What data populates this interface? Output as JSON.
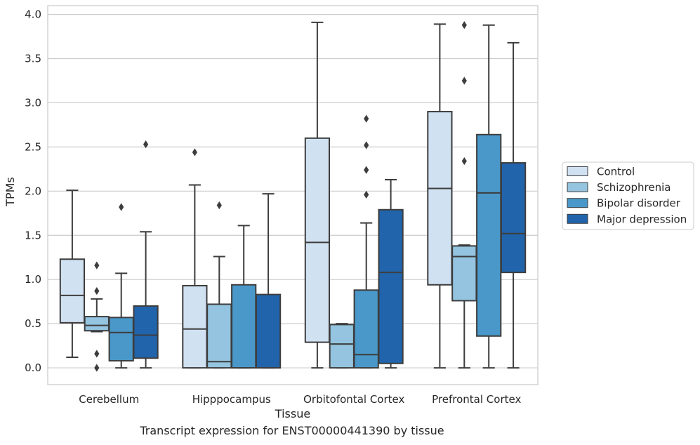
{
  "chart_data": {
    "type": "boxplot",
    "xlabel": "Tissue",
    "ylabel": "TPMs",
    "caption": "Transcript expression for ENST00000441390 by tissue",
    "ylim": [
      -0.19,
      4.1
    ],
    "yticks": [
      "0.0",
      "0.5",
      "1.0",
      "1.5",
      "2.0",
      "2.5",
      "3.0",
      "3.5",
      "4.0"
    ],
    "grid": "horizontal",
    "legend_position": "right",
    "categories": [
      "Cerebellum",
      "Hipppocampus",
      "Orbitofontal Cortex",
      "Prefrontal Cortex"
    ],
    "series": [
      {
        "name": "Control",
        "color": "#d0e1f2",
        "boxes": [
          {
            "min": 0.12,
            "q1": 0.51,
            "median": 0.82,
            "q3": 1.23,
            "max": 2.01,
            "outliers": []
          },
          {
            "min": 0.0,
            "q1": 0.0,
            "median": 0.44,
            "q3": 0.93,
            "max": 2.07,
            "outliers": [
              2.44
            ]
          },
          {
            "min": 0.0,
            "q1": 0.29,
            "median": 1.42,
            "q3": 2.6,
            "max": 3.91,
            "outliers": []
          },
          {
            "min": 0.0,
            "q1": 0.94,
            "median": 2.03,
            "q3": 2.9,
            "max": 3.89,
            "outliers": []
          }
        ]
      },
      {
        "name": "Schizophrenia",
        "color": "#94c4df",
        "boxes": [
          {
            "min": 0.41,
            "q1": 0.42,
            "median": 0.48,
            "q3": 0.58,
            "max": 0.78,
            "outliers": [
              0.0,
              0.16,
              0.87,
              1.16
            ]
          },
          {
            "min": 0.0,
            "q1": 0.0,
            "median": 0.07,
            "q3": 0.72,
            "max": 1.26,
            "outliers": [
              1.84
            ]
          },
          {
            "min": 0.0,
            "q1": 0.0,
            "median": 0.27,
            "q3": 0.49,
            "max": 0.5,
            "outliers": []
          },
          {
            "min": 0.0,
            "q1": 0.76,
            "median": 1.26,
            "q3": 1.38,
            "max": 1.39,
            "outliers": [
              2.34,
              3.25,
              3.88
            ]
          }
        ]
      },
      {
        "name": "Bipolar disorder",
        "color": "#4a98c9",
        "boxes": [
          {
            "min": 0.0,
            "q1": 0.08,
            "median": 0.4,
            "q3": 0.57,
            "max": 1.07,
            "outliers": [
              1.82
            ]
          },
          {
            "min": 0.0,
            "q1": 0.0,
            "median": 0.0,
            "q3": 0.94,
            "max": 1.61,
            "outliers": []
          },
          {
            "min": 0.0,
            "q1": 0.0,
            "median": 0.15,
            "q3": 0.88,
            "max": 1.64,
            "outliers": [
              1.96,
              2.24,
              2.52,
              2.82
            ]
          },
          {
            "min": 0.0,
            "q1": 0.36,
            "median": 1.98,
            "q3": 2.64,
            "max": 3.88,
            "outliers": []
          }
        ]
      },
      {
        "name": "Major depression",
        "color": "#2164ab",
        "boxes": [
          {
            "min": 0.0,
            "q1": 0.11,
            "median": 0.37,
            "q3": 0.7,
            "max": 1.54,
            "outliers": [
              2.53
            ]
          },
          {
            "min": 0.0,
            "q1": 0.0,
            "median": 0.0,
            "q3": 0.83,
            "max": 1.97,
            "outliers": []
          },
          {
            "min": 0.0,
            "q1": 0.05,
            "median": 1.08,
            "q3": 1.79,
            "max": 2.13,
            "outliers": []
          },
          {
            "min": 0.0,
            "q1": 1.08,
            "median": 1.52,
            "q3": 2.32,
            "max": 3.68,
            "outliers": []
          }
        ]
      }
    ]
  }
}
